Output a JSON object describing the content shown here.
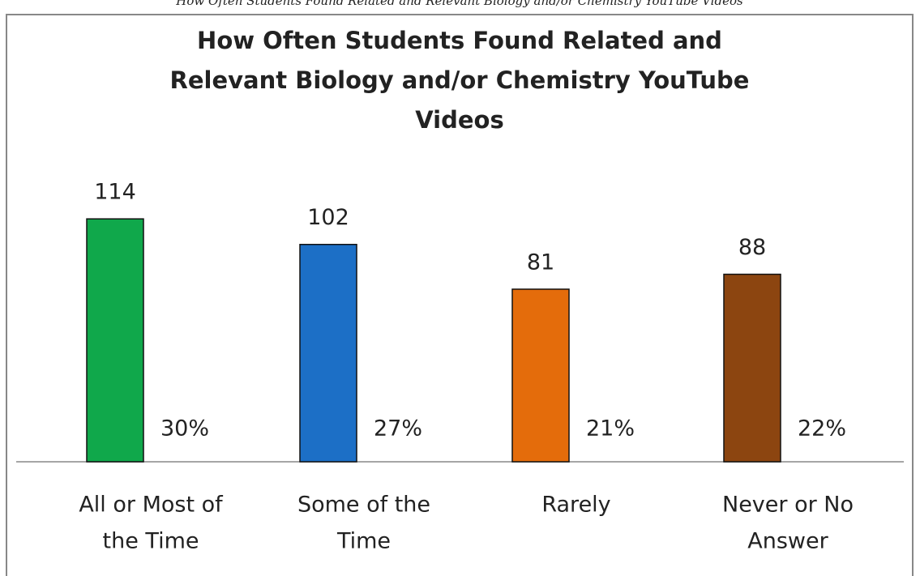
{
  "caption": "How Often Students Found Related and Relevant Biology and/or Chemistry YouTube Videos",
  "chart_data": {
    "type": "bar",
    "title": [
      "How Often Students Found Related and",
      "Relevant Biology and/or Chemistry YouTube",
      "Videos"
    ],
    "categories": [
      [
        "All or Most of",
        "the Time"
      ],
      [
        "Some of the",
        "Time"
      ],
      [
        "Rarely"
      ],
      [
        "Never or No",
        "Answer"
      ]
    ],
    "values": [
      114,
      102,
      81,
      88
    ],
    "percentages": [
      30,
      27,
      21,
      22
    ],
    "percentage_labels": [
      "30%",
      "27%",
      "21%",
      "22%"
    ],
    "colors": [
      "#10a84b",
      "#1c6fc6",
      "#e46c0b",
      "#8c4510"
    ],
    "grid": false
  }
}
